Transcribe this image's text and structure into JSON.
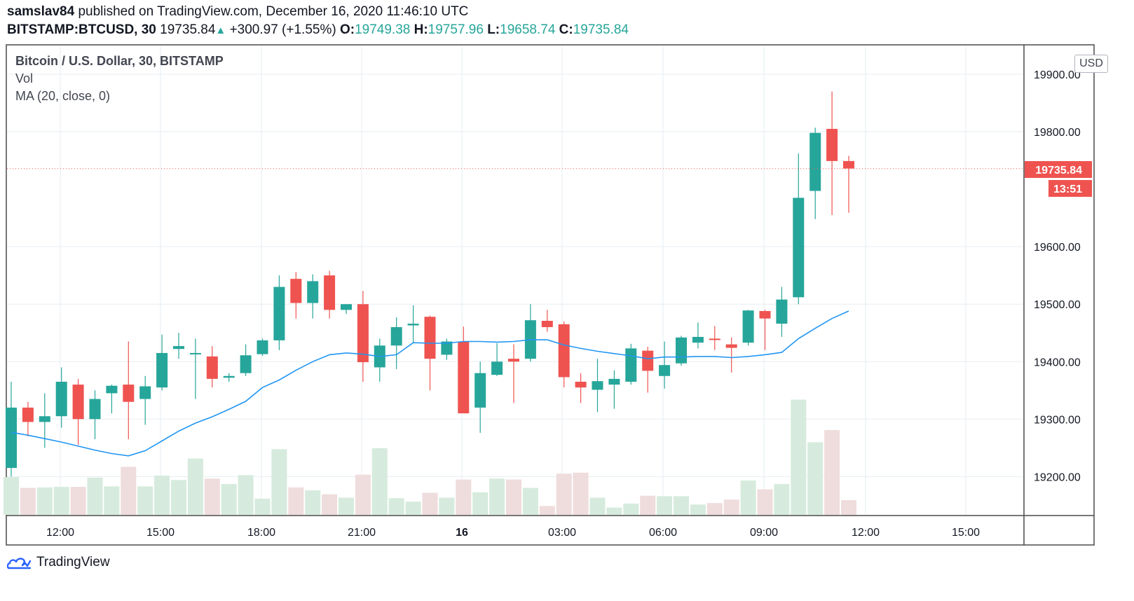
{
  "header": {
    "author": "samslav84",
    "published_text": "published on TradingView.com, December 16, 2020 11:46:10 UTC",
    "symbol": "BITSTAMP:BTCUSD, 30",
    "last": "19735.84",
    "change": "+300.97 (+1.55%)",
    "o_label": "O:",
    "o_value": "19749.38",
    "h_label": "H:",
    "h_value": "19757.96",
    "l_label": "L:",
    "l_value": "19658.74",
    "c_label": "C:",
    "c_value": "19735.84"
  },
  "legend": {
    "title": "Bitcoin / U.S. Dollar, 30, BITSTAMP",
    "vol": "Vol",
    "ma": "MA (20, close, 0)"
  },
  "price_scale": {
    "currency": "USD",
    "last_price_label": "19735.84",
    "countdown": "13:51"
  },
  "footer": {
    "brand": "TradingView"
  },
  "colors": {
    "up": "#26a69a",
    "down": "#ef5350",
    "ma": "#2196f3",
    "vol_up": "#d6ebdd",
    "vol_down": "#efdcdc",
    "grid": "#e6edf2"
  },
  "chart_data": {
    "type": "candlestick",
    "title": "Bitcoin / U.S. Dollar, 30, BITSTAMP",
    "ylim": [
      19130,
      19950
    ],
    "y_ticks": [
      "19900.00",
      "19800.00",
      "19600.00",
      "19500.00",
      "19400.00",
      "19300.00",
      "19200.00"
    ],
    "x_ticks": [
      "12:00",
      "15:00",
      "18:00",
      "21:00",
      "16",
      "03:00",
      "06:00",
      "09:00",
      "12:00",
      "15:00"
    ],
    "grid": true,
    "candles": [
      {
        "o": 19215,
        "h": 19365,
        "l": 19200,
        "c": 19320
      },
      {
        "o": 19320,
        "h": 19330,
        "l": 19270,
        "c": 19295
      },
      {
        "o": 19295,
        "h": 19345,
        "l": 19250,
        "c": 19305
      },
      {
        "o": 19305,
        "h": 19390,
        "l": 19285,
        "c": 19365
      },
      {
        "o": 19360,
        "h": 19370,
        "l": 19255,
        "c": 19300
      },
      {
        "o": 19300,
        "h": 19350,
        "l": 19265,
        "c": 19335
      },
      {
        "o": 19345,
        "h": 19360,
        "l": 19310,
        "c": 19358
      },
      {
        "o": 19360,
        "h": 19435,
        "l": 19265,
        "c": 19330
      },
      {
        "o": 19335,
        "h": 19375,
        "l": 19290,
        "c": 19357
      },
      {
        "o": 19355,
        "h": 19447,
        "l": 19350,
        "c": 19415
      },
      {
        "o": 19422,
        "h": 19450,
        "l": 19405,
        "c": 19427
      },
      {
        "o": 19415,
        "h": 19440,
        "l": 19335,
        "c": 19415
      },
      {
        "o": 19409,
        "h": 19427,
        "l": 19355,
        "c": 19370
      },
      {
        "o": 19372,
        "h": 19380,
        "l": 19365,
        "c": 19375
      },
      {
        "o": 19380,
        "h": 19430,
        "l": 19375,
        "c": 19411
      },
      {
        "o": 19413,
        "h": 19440,
        "l": 19410,
        "c": 19437
      },
      {
        "o": 19437,
        "h": 19550,
        "l": 19420,
        "c": 19530
      },
      {
        "o": 19544,
        "h": 19556,
        "l": 19475,
        "c": 19502
      },
      {
        "o": 19502,
        "h": 19552,
        "l": 19475,
        "c": 19540
      },
      {
        "o": 19550,
        "h": 19558,
        "l": 19475,
        "c": 19490
      },
      {
        "o": 19490,
        "h": 19498,
        "l": 19483,
        "c": 19500
      },
      {
        "o": 19500,
        "h": 19523,
        "l": 19365,
        "c": 19399
      },
      {
        "o": 19390,
        "h": 19440,
        "l": 19365,
        "c": 19428
      },
      {
        "o": 19428,
        "h": 19477,
        "l": 19387,
        "c": 19460
      },
      {
        "o": 19463,
        "h": 19498,
        "l": 19432,
        "c": 19466
      },
      {
        "o": 19478,
        "h": 19480,
        "l": 19350,
        "c": 19405
      },
      {
        "o": 19412,
        "h": 19440,
        "l": 19403,
        "c": 19435
      },
      {
        "o": 19435,
        "h": 19461,
        "l": 19310,
        "c": 19310
      },
      {
        "o": 19320,
        "h": 19400,
        "l": 19276,
        "c": 19380
      },
      {
        "o": 19377,
        "h": 19432,
        "l": 19375,
        "c": 19400
      },
      {
        "o": 19405,
        "h": 19430,
        "l": 19328,
        "c": 19400
      },
      {
        "o": 19405,
        "h": 19500,
        "l": 19400,
        "c": 19472
      },
      {
        "o": 19471,
        "h": 19490,
        "l": 19452,
        "c": 19460
      },
      {
        "o": 19465,
        "h": 19470,
        "l": 19355,
        "c": 19373
      },
      {
        "o": 19365,
        "h": 19380,
        "l": 19328,
        "c": 19355
      },
      {
        "o": 19351,
        "h": 19405,
        "l": 19312,
        "c": 19366
      },
      {
        "o": 19360,
        "h": 19385,
        "l": 19318,
        "c": 19370
      },
      {
        "o": 19365,
        "h": 19431,
        "l": 19360,
        "c": 19423
      },
      {
        "o": 19419,
        "h": 19426,
        "l": 19346,
        "c": 19384
      },
      {
        "o": 19375,
        "h": 19435,
        "l": 19353,
        "c": 19394
      },
      {
        "o": 19397,
        "h": 19445,
        "l": 19393,
        "c": 19442
      },
      {
        "o": 19433,
        "h": 19468,
        "l": 19423,
        "c": 19443
      },
      {
        "o": 19440,
        "h": 19462,
        "l": 19420,
        "c": 19439
      },
      {
        "o": 19430,
        "h": 19442,
        "l": 19381,
        "c": 19424
      },
      {
        "o": 19433,
        "h": 19490,
        "l": 19428,
        "c": 19489
      },
      {
        "o": 19488,
        "h": 19490,
        "l": 19420,
        "c": 19475
      },
      {
        "o": 19466,
        "h": 19530,
        "l": 19443,
        "c": 19508
      },
      {
        "o": 19512,
        "h": 19762,
        "l": 19500,
        "c": 19685
      },
      {
        "o": 19697,
        "h": 19807,
        "l": 19648,
        "c": 19798
      },
      {
        "o": 19805,
        "h": 19870,
        "l": 19655,
        "c": 19749
      },
      {
        "o": 19749,
        "h": 19758,
        "l": 19659,
        "c": 19736
      }
    ],
    "volume_relative": [
      0.77,
      0.55,
      0.56,
      0.57,
      0.57,
      0.76,
      0.58,
      0.98,
      0.58,
      0.8,
      0.71,
      1.15,
      0.74,
      0.63,
      0.81,
      0.33,
      1.34,
      0.56,
      0.5,
      0.42,
      0.35,
      0.82,
      1.36,
      0.34,
      0.27,
      0.45,
      0.35,
      0.72,
      0.46,
      0.74,
      0.72,
      0.55,
      0.18,
      0.84,
      0.86,
      0.35,
      0.15,
      0.23,
      0.39,
      0.38,
      0.38,
      0.21,
      0.24,
      0.31,
      0.7,
      0.52,
      0.63,
      2.35,
      1.48,
      1.73,
      0.3
    ],
    "ma_values": [
      19277,
      19272,
      19266,
      19260,
      19253,
      19246,
      19240,
      19236,
      19245,
      19262,
      19279,
      19293,
      19304,
      19317,
      19331,
      19355,
      19368,
      19385,
      19400,
      19412,
      19415,
      19413,
      19409,
      19412,
      19433,
      19432,
      19432,
      19435,
      19435,
      19434,
      19435,
      19438,
      19438,
      19429,
      19423,
      19418,
      19414,
      19410,
      19405,
      19408,
      19408,
      19409,
      19409,
      19407,
      19409,
      19412,
      19416,
      19440,
      19458,
      19475,
      19488
    ]
  }
}
